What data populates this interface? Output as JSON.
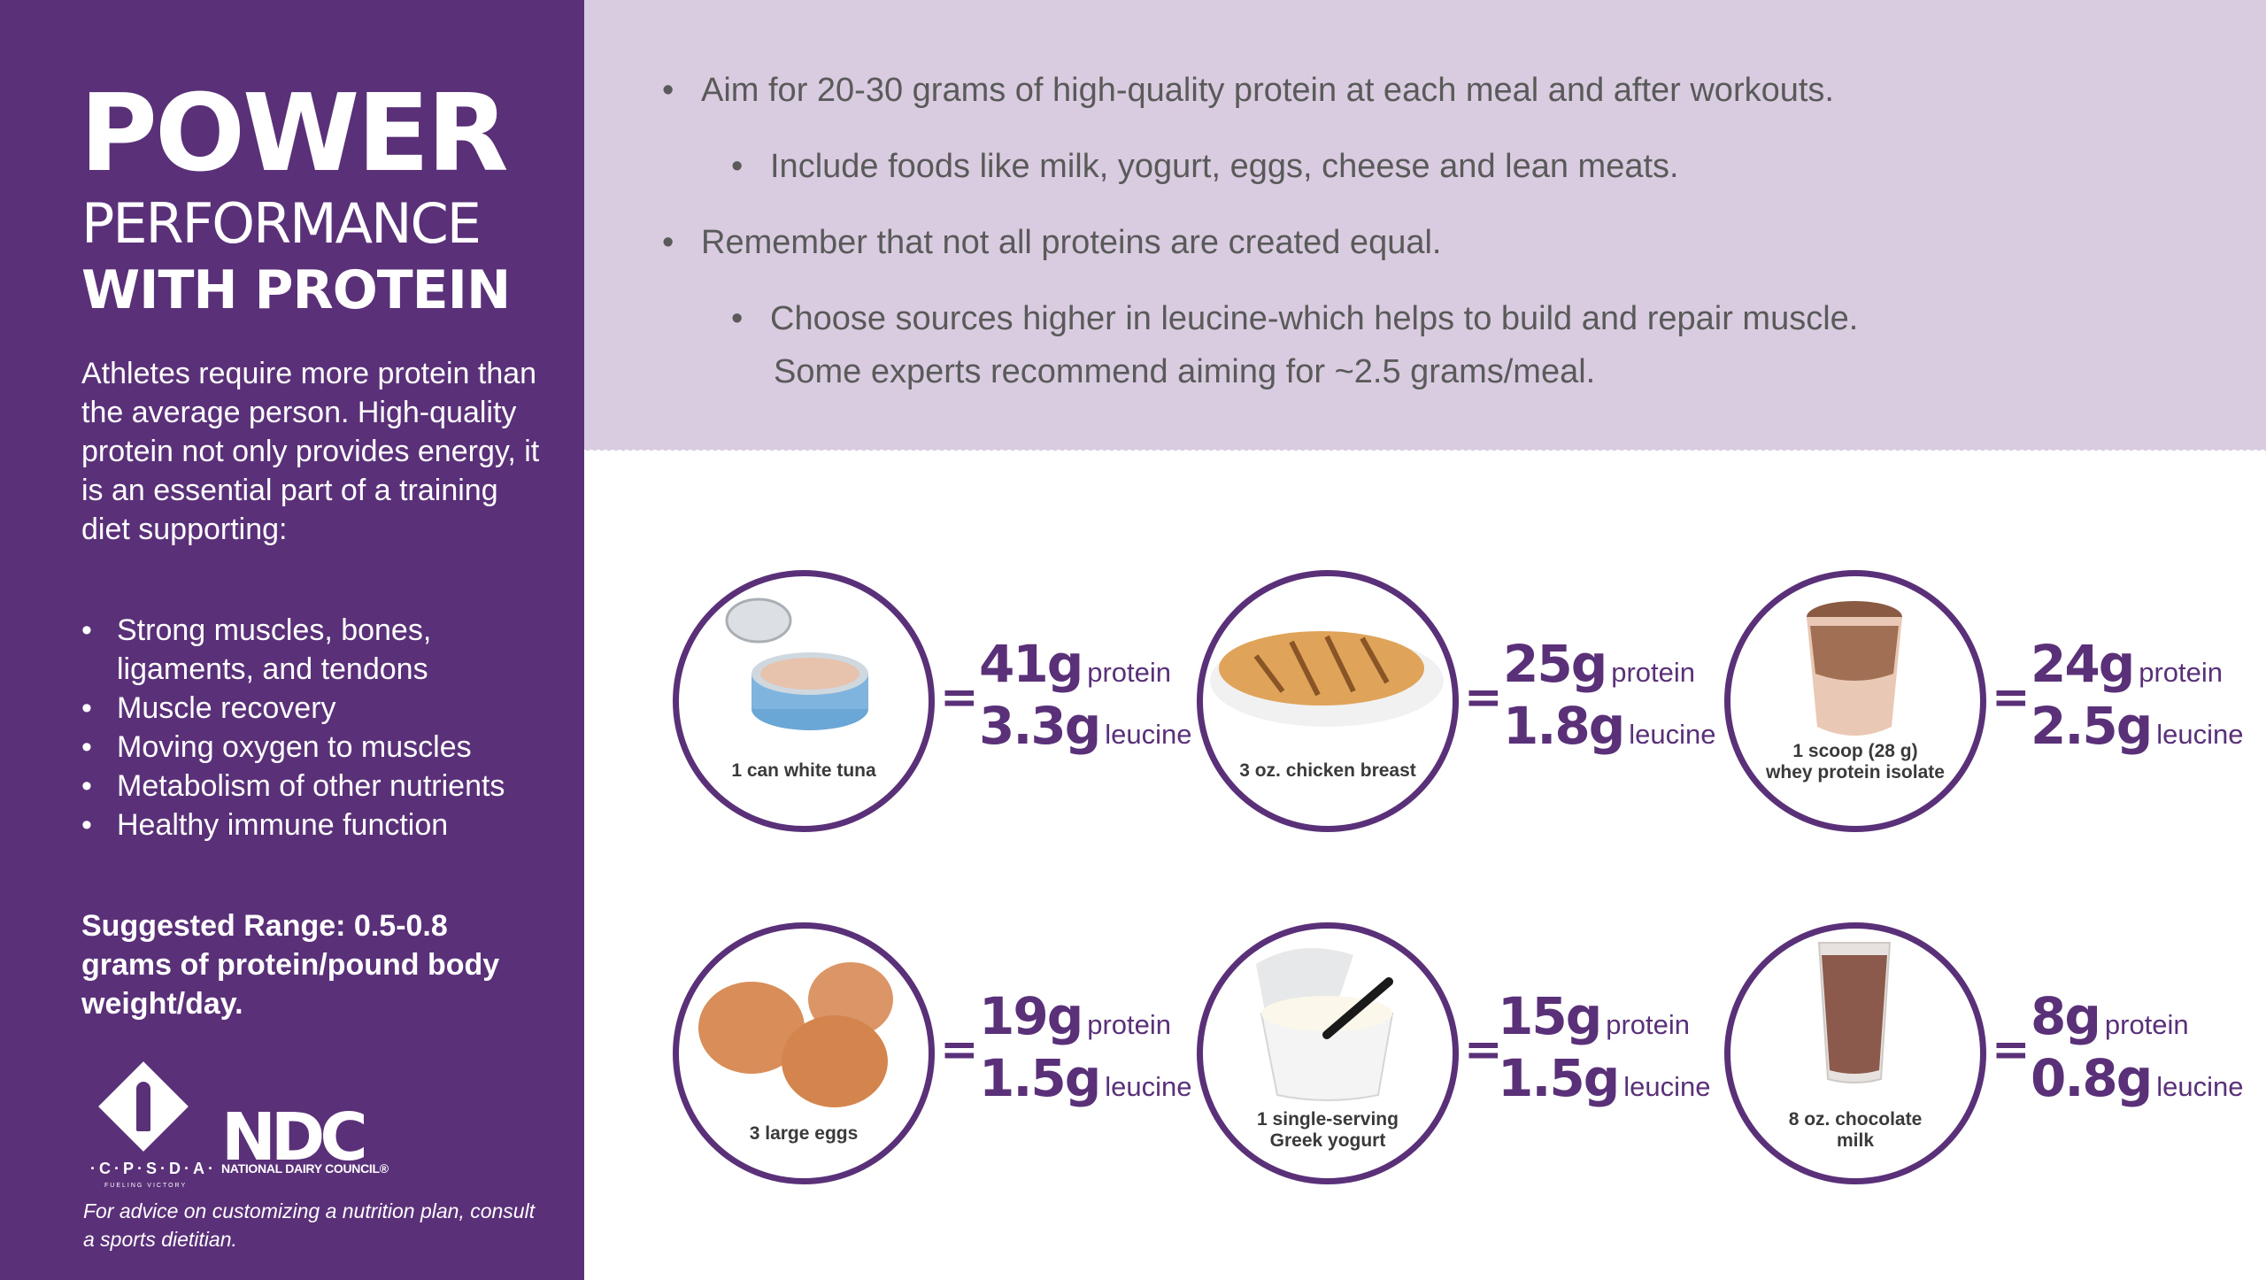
{
  "left_panel": {
    "title_line1": "POWER",
    "title_line2": "PERFORMANCE",
    "title_line3": "WITH PROTEIN",
    "intro": "Athletes require more protein than the average person. High-quality protein not only provides energy, it is an essential part of a training diet supporting:",
    "benefits": [
      "Strong muscles, bones, ligaments, and tendons",
      "Muscle recovery",
      "Moving oxygen to muscles",
      "Metabolism of other nutrients",
      "Healthy immune function"
    ],
    "suggested_range": "Suggested Range: 0.5-0.8 grams of protein/pound body weight/day.",
    "logo_cpsda": "·C·P·S·D·A·",
    "logo_cpsda_sub": "FUELING VICTORY",
    "logo_ndc": "NDC",
    "logo_ndc_sub": "NATIONAL DAIRY COUNCIL®",
    "advice": "For advice on customizing a nutrition plan, consult a sports dietitian."
  },
  "tips": {
    "tip1": "Aim for 20-30 grams of high-quality protein at each meal and after workouts.",
    "tip2": "Include foods like milk, yogurt, eggs, cheese and lean meats.",
    "tip3": "Remember that not all proteins are created equal.",
    "tip4_line1": "Choose sources higher in leucine-which helps to build and repair muscle.",
    "tip4_line2": "Some experts recommend aiming for ~2.5 grams/meal."
  },
  "foods": [
    {
      "name": "1 can white tuna",
      "protein": "41g",
      "leucine": "3.3g",
      "equals": "=",
      "protein_unit": "protein",
      "leucine_unit": "leucine"
    },
    {
      "name": "3 oz. chicken breast",
      "protein": "25g",
      "leucine": "1.8g",
      "equals": "=",
      "protein_unit": "protein",
      "leucine_unit": "leucine"
    },
    {
      "name_line1": "1 scoop (28 g)",
      "name_line2": "whey protein isolate",
      "protein": "24g",
      "leucine": "2.5g",
      "equals": "=",
      "protein_unit": "protein",
      "leucine_unit": "leucine"
    },
    {
      "name": "3 large eggs",
      "protein": "19g",
      "leucine": "1.5g",
      "equals": "=",
      "protein_unit": "protein",
      "leucine_unit": "leucine"
    },
    {
      "name_line1": "1 single-serving",
      "name_line2": "Greek yogurt",
      "protein": "15g",
      "leucine": "1.5g",
      "equals": "=",
      "protein_unit": "protein",
      "leucine_unit": "leucine"
    },
    {
      "name_line1": "8 oz. chocolate",
      "name_line2": "milk",
      "protein": "8g",
      "leucine": "0.8g",
      "equals": "=",
      "protein_unit": "protein",
      "leucine_unit": "leucine"
    }
  ],
  "colors": {
    "purple": "#5a3079",
    "lavender": "#d9cce1",
    "text_gray": "#5a5a5a"
  }
}
